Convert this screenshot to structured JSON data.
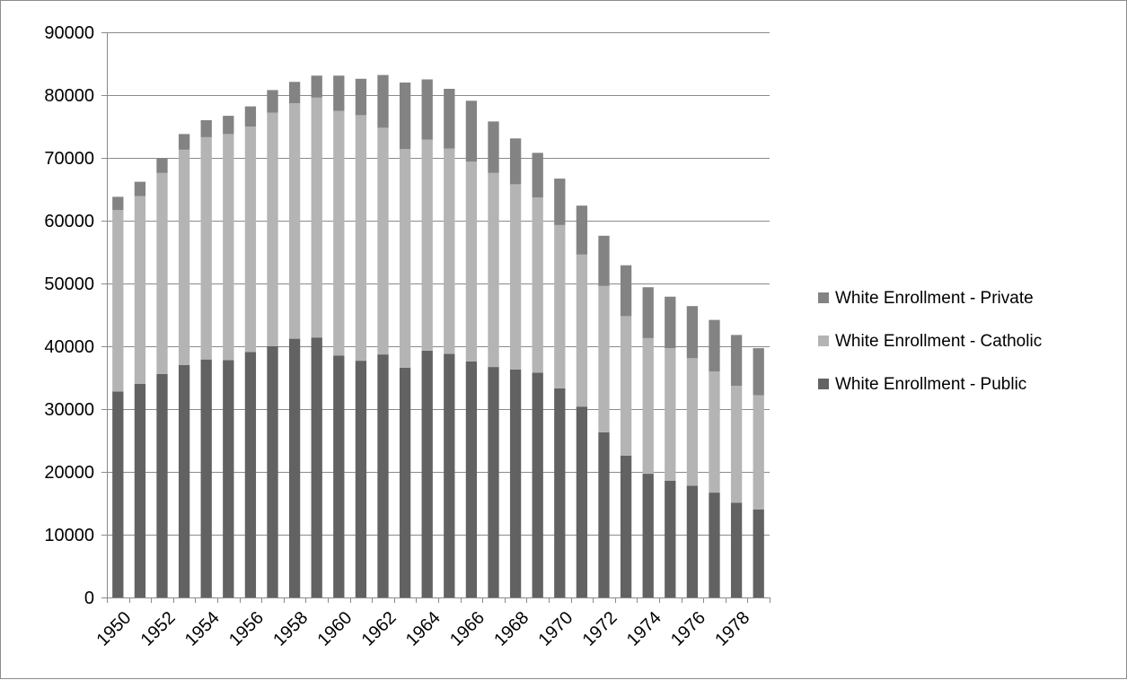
{
  "chart_data": {
    "type": "bar",
    "stacked": true,
    "title": "",
    "xlabel": "",
    "ylabel": "",
    "ylim": [
      0,
      90000
    ],
    "y_ticks": [
      0,
      10000,
      20000,
      30000,
      40000,
      50000,
      60000,
      70000,
      80000,
      90000
    ],
    "x_tick_labels": [
      "1950",
      "1952",
      "1954",
      "1956",
      "1958",
      "1960",
      "1962",
      "1964",
      "1966",
      "1968",
      "1970",
      "1972",
      "1974",
      "1976",
      "1978"
    ],
    "grid": "horizontal",
    "legend_position": "right",
    "categories": [
      1950,
      1951,
      1952,
      1953,
      1954,
      1955,
      1956,
      1957,
      1958,
      1959,
      1960,
      1961,
      1962,
      1963,
      1964,
      1965,
      1966,
      1967,
      1968,
      1969,
      1970,
      1971,
      1972,
      1973,
      1974,
      1975,
      1976,
      1977,
      1978,
      1979
    ],
    "series": [
      {
        "name": "White Enrollment - Public",
        "color": "#626262",
        "values": [
          32800,
          34000,
          35600,
          37000,
          37900,
          37800,
          39100,
          40000,
          41200,
          41400,
          38500,
          37700,
          38700,
          36600,
          39300,
          38800,
          37600,
          36700,
          36300,
          35800,
          33300,
          30400,
          26300,
          22600,
          19700,
          18600,
          17800,
          16700,
          15100,
          14000
        ]
      },
      {
        "name": "White Enrollment - Catholic",
        "color": "#b4b4b4",
        "values": [
          28900,
          29900,
          32000,
          34300,
          35400,
          36000,
          35900,
          37200,
          37500,
          38200,
          39000,
          39100,
          36100,
          34800,
          33600,
          32700,
          31800,
          30900,
          29500,
          27900,
          26000,
          24200,
          23300,
          22200,
          21600,
          21100,
          20300,
          19300,
          18600,
          18200
        ]
      },
      {
        "name": "White Enrollment - Private",
        "color": "#838383",
        "values": [
          2100,
          2300,
          2400,
          2500,
          2700,
          2900,
          3200,
          3600,
          3400,
          3500,
          5600,
          5800,
          8400,
          10600,
          9600,
          9500,
          9700,
          8200,
          7300,
          7100,
          7400,
          7800,
          8000,
          8100,
          8100,
          8200,
          8300,
          8200,
          8100,
          7500
        ]
      }
    ]
  }
}
